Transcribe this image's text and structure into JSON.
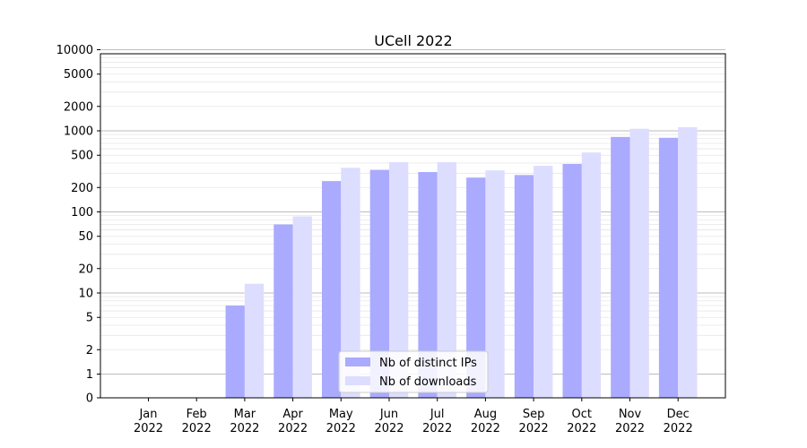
{
  "chart_data": {
    "type": "bar",
    "title": "UCell 2022",
    "xlabel": "",
    "ylabel": "",
    "y_scale": "symlog",
    "ylim": [
      0,
      15000
    ],
    "y_ticks": [
      0,
      1,
      2,
      5,
      10,
      20,
      50,
      100,
      200,
      500,
      1000,
      2000,
      5000,
      10000
    ],
    "y_tick_labels": [
      "0",
      "1",
      "2",
      "5",
      "10",
      "20",
      "50",
      "100",
      "200",
      "500",
      "1000",
      "2000",
      "5000",
      "10000"
    ],
    "grid": true,
    "legend_position": "bottom-center",
    "categories": [
      "Jan 2022",
      "Feb 2022",
      "Mar 2022",
      "Apr 2022",
      "May 2022",
      "Jun 2022",
      "Jul 2022",
      "Aug 2022",
      "Sep 2022",
      "Oct 2022",
      "Nov 2022",
      "Dec 2022"
    ],
    "category_lines": [
      [
        "Jan",
        "2022"
      ],
      [
        "Feb",
        "2022"
      ],
      [
        "Mar",
        "2022"
      ],
      [
        "Apr",
        "2022"
      ],
      [
        "May",
        "2022"
      ],
      [
        "Jun",
        "2022"
      ],
      [
        "Jul",
        "2022"
      ],
      [
        "Aug",
        "2022"
      ],
      [
        "Sep",
        "2022"
      ],
      [
        "Oct",
        "2022"
      ],
      [
        "Nov",
        "2022"
      ],
      [
        "Dec",
        "2022"
      ]
    ],
    "series": [
      {
        "name": "Nb of distinct IPs",
        "color": "#aaaaff",
        "values": [
          0,
          0,
          7,
          70,
          240,
          330,
          310,
          265,
          285,
          390,
          840,
          820
        ]
      },
      {
        "name": "Nb of downloads",
        "color": "#ddddff",
        "values": [
          0,
          0,
          13,
          88,
          350,
          410,
          410,
          325,
          370,
          540,
          1060,
          1110
        ]
      }
    ]
  }
}
